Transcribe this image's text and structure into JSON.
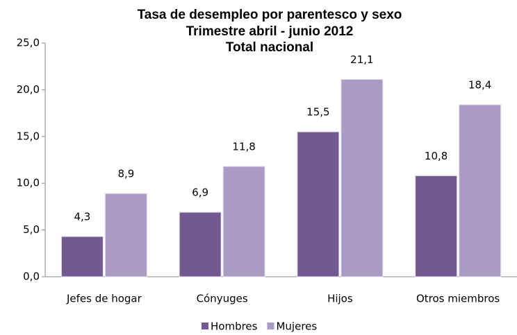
{
  "chart_data": {
    "type": "bar",
    "title": [
      "Tasa de desempleo por parentesco y sexo",
      "Trimestre abril - junio 2012",
      "Total nacional"
    ],
    "categories": [
      "Jefes de hogar",
      "Cónyuges",
      "Hijos",
      "Otros miembros"
    ],
    "series": [
      {
        "name": "Hombres",
        "color": "#725a91",
        "values": [
          4.3,
          6.9,
          15.5,
          10.8
        ],
        "value_labels": [
          "4,3",
          "6,9",
          "15,5",
          "10,8"
        ]
      },
      {
        "name": "Mujeres",
        "color": "#a99bc4",
        "values": [
          8.9,
          11.8,
          21.1,
          18.4
        ],
        "value_labels": [
          "8,9",
          "11,8",
          "21,1",
          "18,4"
        ]
      }
    ],
    "ylim": [
      0,
      25
    ],
    "yticks": [
      {
        "value": 0,
        "label": "0,0"
      },
      {
        "value": 5,
        "label": "5,0"
      },
      {
        "value": 10,
        "label": "10,0"
      },
      {
        "value": 15,
        "label": "15,0"
      },
      {
        "value": 20,
        "label": "20,0"
      },
      {
        "value": 25,
        "label": "25,0"
      }
    ],
    "grid": false,
    "legend": "bottom"
  }
}
